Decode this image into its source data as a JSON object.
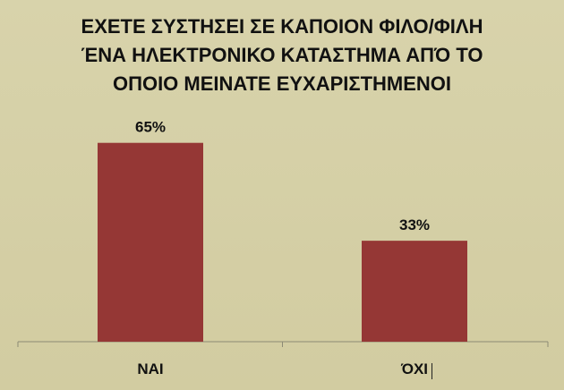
{
  "chart_data": {
    "type": "bar",
    "title_lines": [
      "ΕΧΕΤΕ ΣΥΣΤΗΣΕΙ ΣΕ ΚΑΠΟΙΟΝ ΦΙΛΟ/ΦΙΛΗ",
      "ΈΝΑ ΗΛΕΚΤΡΟΝΙΚΟ ΚΑΤΑΣΤΗΜΑ ΑΠΌ ΤΟ",
      "ΟΠΟΙΟ ΜΕΙΝΑΤΕ ΕΥΧΑΡΙΣΤΗΜΕΝΟΙ"
    ],
    "categories": [
      "ΝΑΙ",
      "ΌΧΙ"
    ],
    "values": [
      65,
      33
    ],
    "data_labels": [
      "65%",
      "33%"
    ],
    "unit": "%",
    "ylim": [
      0,
      100
    ],
    "grid": false,
    "legend": "none",
    "bar_color": "#953735"
  }
}
